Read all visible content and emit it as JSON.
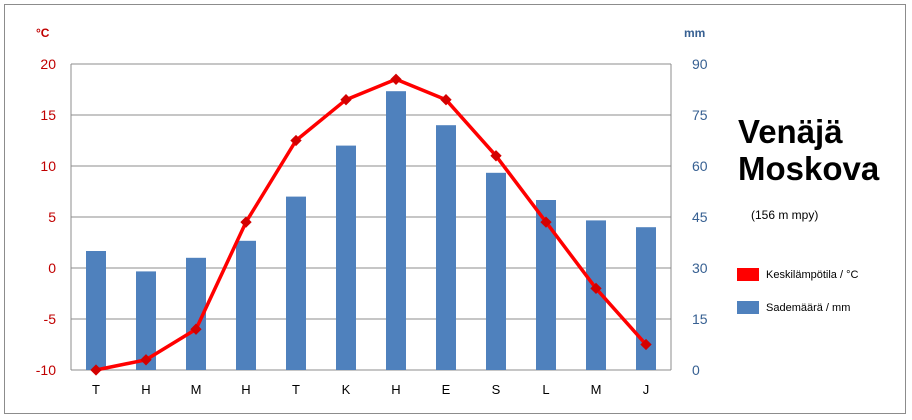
{
  "title": "Venäjä",
  "subtitle": "Moskova",
  "elevation": "(156 m mpy)",
  "chart_data": {
    "type": "bar+line",
    "categories": [
      "T",
      "H",
      "M",
      "H",
      "T",
      "K",
      "H",
      "E",
      "S",
      "L",
      "M",
      "J"
    ],
    "series": [
      {
        "name": "Keskilämpötila / °C",
        "kind": "line",
        "axis": "left",
        "color": "#ff0000",
        "values": [
          -10.0,
          -9.0,
          -6.0,
          4.5,
          12.5,
          16.5,
          18.5,
          16.5,
          11.0,
          4.5,
          -2.0,
          -7.5
        ]
      },
      {
        "name": "Sademäärä / mm",
        "kind": "bar",
        "axis": "right",
        "color": "#4f81bd",
        "values": [
          35,
          29,
          33,
          38,
          51,
          66,
          82,
          72,
          58,
          50,
          44,
          42
        ]
      }
    ],
    "y_left": {
      "label": "°C",
      "ylim": [
        -10,
        20
      ],
      "ticks": [
        -10,
        -5,
        0,
        5,
        10,
        15,
        20
      ],
      "color": "#c00000"
    },
    "y_right": {
      "label": "mm",
      "ylim": [
        0,
        90
      ],
      "ticks": [
        0,
        15,
        30,
        45,
        60,
        75,
        90
      ],
      "color": "#376092"
    },
    "grid": true,
    "legend_position": "right"
  }
}
